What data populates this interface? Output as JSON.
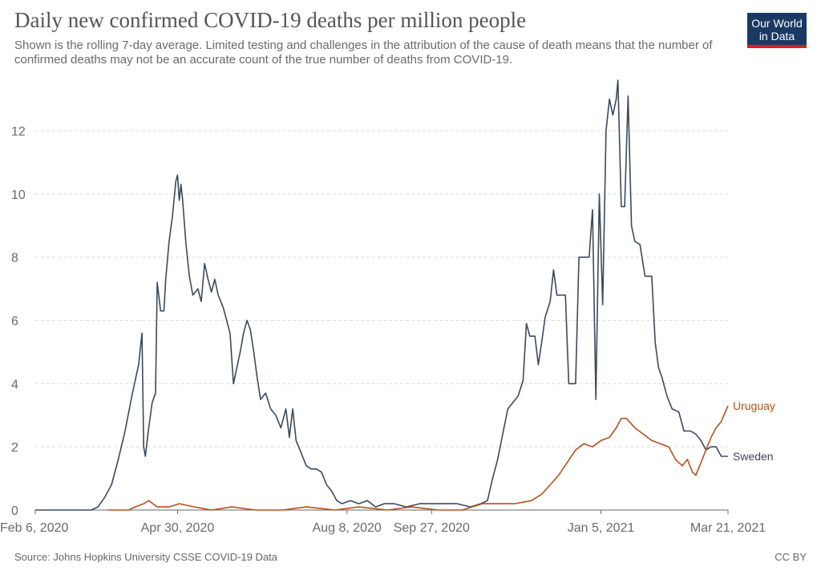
{
  "header": {
    "title": "Daily new confirmed COVID-19 deaths per million people",
    "subtitle": "Shown is the rolling 7-day average. Limited testing and challenges in the attribution of the cause of death means that the number of confirmed deaths may not be an accurate count of the true number of deaths from COVID-19.",
    "logo_line1": "Our World",
    "logo_line2": "in Data"
  },
  "footer": {
    "source": "Source: Johns Hopkins University CSSE COVID-19 Data",
    "license": "CC BY"
  },
  "colors": {
    "sweden": "#3b4a5b",
    "uruguay": "#b5501b",
    "logo_bg": "#1a3a63",
    "logo_accent": "#ce261e"
  },
  "chart_data": {
    "type": "line",
    "title": "Daily new confirmed COVID-19 deaths per million people",
    "xlabel": "",
    "ylabel": "",
    "ylim": [
      0,
      13.6
    ],
    "xlim": [
      "2020-02-06",
      "2021-03-21"
    ],
    "y_ticks": [
      0,
      2,
      4,
      6,
      8,
      10,
      12
    ],
    "x_ticks": [
      {
        "date": "2020-02-06",
        "label": "Feb 6, 2020"
      },
      {
        "date": "2020-04-30",
        "label": "Apr 30, 2020"
      },
      {
        "date": "2020-08-08",
        "label": "Aug 8, 2020"
      },
      {
        "date": "2020-09-27",
        "label": "Sep 27, 2020"
      },
      {
        "date": "2021-01-05",
        "label": "Jan 5, 2021"
      },
      {
        "date": "2021-03-21",
        "label": "Mar 21, 2021"
      }
    ],
    "grid": "horizontal dashed",
    "series": [
      {
        "name": "Sweden",
        "points": [
          [
            "2020-02-06",
            0
          ],
          [
            "2020-03-10",
            0
          ],
          [
            "2020-03-14",
            0.1
          ],
          [
            "2020-03-18",
            0.4
          ],
          [
            "2020-03-22",
            0.8
          ],
          [
            "2020-03-26",
            1.6
          ],
          [
            "2020-03-30",
            2.5
          ],
          [
            "2020-04-03",
            3.6
          ],
          [
            "2020-04-07",
            4.6
          ],
          [
            "2020-04-09",
            5.6
          ],
          [
            "2020-04-10",
            2.0
          ],
          [
            "2020-04-11",
            1.7
          ],
          [
            "2020-04-13",
            2.6
          ],
          [
            "2020-04-15",
            3.4
          ],
          [
            "2020-04-17",
            3.7
          ],
          [
            "2020-04-18",
            7.2
          ],
          [
            "2020-04-20",
            6.3
          ],
          [
            "2020-04-22",
            6.3
          ],
          [
            "2020-04-23",
            7.3
          ],
          [
            "2020-04-25",
            8.5
          ],
          [
            "2020-04-27",
            9.3
          ],
          [
            "2020-04-29",
            10.4
          ],
          [
            "2020-04-30",
            10.6
          ],
          [
            "2020-05-01",
            9.8
          ],
          [
            "2020-05-02",
            10.3
          ],
          [
            "2020-05-03",
            9.8
          ],
          [
            "2020-05-05",
            8.4
          ],
          [
            "2020-05-07",
            7.4
          ],
          [
            "2020-05-09",
            6.8
          ],
          [
            "2020-05-12",
            7.0
          ],
          [
            "2020-05-14",
            6.6
          ],
          [
            "2020-05-16",
            7.8
          ],
          [
            "2020-05-18",
            7.3
          ],
          [
            "2020-05-20",
            6.9
          ],
          [
            "2020-05-22",
            7.3
          ],
          [
            "2020-05-24",
            6.8
          ],
          [
            "2020-05-27",
            6.4
          ],
          [
            "2020-05-29",
            6.0
          ],
          [
            "2020-05-31",
            5.6
          ],
          [
            "2020-06-02",
            4.0
          ],
          [
            "2020-06-04",
            4.5
          ],
          [
            "2020-06-06",
            5.0
          ],
          [
            "2020-06-08",
            5.6
          ],
          [
            "2020-06-10",
            6.0
          ],
          [
            "2020-06-12",
            5.7
          ],
          [
            "2020-06-14",
            5.0
          ],
          [
            "2020-06-16",
            4.2
          ],
          [
            "2020-06-18",
            3.5
          ],
          [
            "2020-06-21",
            3.7
          ],
          [
            "2020-06-24",
            3.2
          ],
          [
            "2020-06-27",
            3.0
          ],
          [
            "2020-06-30",
            2.6
          ],
          [
            "2020-07-03",
            3.2
          ],
          [
            "2020-07-05",
            2.3
          ],
          [
            "2020-07-07",
            3.2
          ],
          [
            "2020-07-09",
            2.2
          ],
          [
            "2020-07-12",
            1.8
          ],
          [
            "2020-07-15",
            1.4
          ],
          [
            "2020-07-18",
            1.3
          ],
          [
            "2020-07-21",
            1.3
          ],
          [
            "2020-07-24",
            1.2
          ],
          [
            "2020-07-27",
            0.8
          ],
          [
            "2020-07-30",
            0.6
          ],
          [
            "2020-08-02",
            0.3
          ],
          [
            "2020-08-05",
            0.2
          ],
          [
            "2020-08-10",
            0.3
          ],
          [
            "2020-08-15",
            0.2
          ],
          [
            "2020-08-20",
            0.3
          ],
          [
            "2020-08-25",
            0.1
          ],
          [
            "2020-08-30",
            0.2
          ],
          [
            "2020-09-05",
            0.2
          ],
          [
            "2020-09-12",
            0.1
          ],
          [
            "2020-09-20",
            0.2
          ],
          [
            "2020-09-27",
            0.2
          ],
          [
            "2020-10-05",
            0.2
          ],
          [
            "2020-10-12",
            0.2
          ],
          [
            "2020-10-20",
            0.1
          ],
          [
            "2020-10-26",
            0.2
          ],
          [
            "2020-10-30",
            0.3
          ],
          [
            "2020-11-02",
            1.0
          ],
          [
            "2020-11-05",
            1.6
          ],
          [
            "2020-11-08",
            2.4
          ],
          [
            "2020-11-11",
            3.2
          ],
          [
            "2020-11-14",
            3.4
          ],
          [
            "2020-11-17",
            3.6
          ],
          [
            "2020-11-20",
            4.1
          ],
          [
            "2020-11-22",
            5.9
          ],
          [
            "2020-11-24",
            5.5
          ],
          [
            "2020-11-27",
            5.5
          ],
          [
            "2020-11-29",
            4.6
          ],
          [
            "2020-12-01",
            5.3
          ],
          [
            "2020-12-03",
            6.1
          ],
          [
            "2020-12-06",
            6.6
          ],
          [
            "2020-12-08",
            7.6
          ],
          [
            "2020-12-10",
            6.8
          ],
          [
            "2020-12-15",
            6.8
          ],
          [
            "2020-12-17",
            4.0
          ],
          [
            "2020-12-19",
            4.0
          ],
          [
            "2020-12-21",
            4.0
          ],
          [
            "2020-12-23",
            8.0
          ],
          [
            "2020-12-26",
            8.0
          ],
          [
            "2020-12-29",
            8.0
          ],
          [
            "2020-12-31",
            9.5
          ],
          [
            "2021-01-02",
            3.5
          ],
          [
            "2021-01-04",
            10.0
          ],
          [
            "2021-01-06",
            6.5
          ],
          [
            "2021-01-08",
            12.0
          ],
          [
            "2021-01-10",
            13.0
          ],
          [
            "2021-01-12",
            12.5
          ],
          [
            "2021-01-14",
            13.0
          ],
          [
            "2021-01-15",
            13.6
          ],
          [
            "2021-01-17",
            9.6
          ],
          [
            "2021-01-19",
            9.6
          ],
          [
            "2021-01-21",
            13.1
          ],
          [
            "2021-01-23",
            9.0
          ],
          [
            "2021-01-25",
            8.5
          ],
          [
            "2021-01-28",
            8.4
          ],
          [
            "2021-01-31",
            7.4
          ],
          [
            "2021-02-04",
            7.4
          ],
          [
            "2021-02-06",
            5.3
          ],
          [
            "2021-02-08",
            4.5
          ],
          [
            "2021-02-10",
            4.2
          ],
          [
            "2021-02-13",
            3.6
          ],
          [
            "2021-02-16",
            3.2
          ],
          [
            "2021-02-20",
            3.1
          ],
          [
            "2021-02-23",
            2.5
          ],
          [
            "2021-02-27",
            2.5
          ],
          [
            "2021-03-02",
            2.4
          ],
          [
            "2021-03-05",
            2.2
          ],
          [
            "2021-03-08",
            1.9
          ],
          [
            "2021-03-11",
            2.0
          ],
          [
            "2021-03-14",
            2.0
          ],
          [
            "2021-03-17",
            1.7
          ],
          [
            "2021-03-21",
            1.7
          ]
        ]
      },
      {
        "name": "Uruguay",
        "points": [
          [
            "2020-03-20",
            0
          ],
          [
            "2020-04-01",
            0
          ],
          [
            "2020-04-05",
            0.1
          ],
          [
            "2020-04-10",
            0.2
          ],
          [
            "2020-04-13",
            0.3
          ],
          [
            "2020-04-18",
            0.1
          ],
          [
            "2020-04-25",
            0.1
          ],
          [
            "2020-05-01",
            0.2
          ],
          [
            "2020-05-10",
            0.1
          ],
          [
            "2020-05-20",
            0.0
          ],
          [
            "2020-06-01",
            0.1
          ],
          [
            "2020-06-15",
            0.0
          ],
          [
            "2020-07-01",
            0.0
          ],
          [
            "2020-07-15",
            0.1
          ],
          [
            "2020-08-01",
            0.0
          ],
          [
            "2020-08-15",
            0.1
          ],
          [
            "2020-09-01",
            0.0
          ],
          [
            "2020-09-15",
            0.1
          ],
          [
            "2020-10-01",
            0.0
          ],
          [
            "2020-10-15",
            0.0
          ],
          [
            "2020-10-27",
            0.2
          ],
          [
            "2020-11-05",
            0.2
          ],
          [
            "2020-11-15",
            0.2
          ],
          [
            "2020-11-25",
            0.3
          ],
          [
            "2020-12-01",
            0.5
          ],
          [
            "2020-12-06",
            0.8
          ],
          [
            "2020-12-11",
            1.1
          ],
          [
            "2020-12-16",
            1.5
          ],
          [
            "2020-12-21",
            1.9
          ],
          [
            "2020-12-26",
            2.1
          ],
          [
            "2020-12-31",
            2.0
          ],
          [
            "2021-01-05",
            2.2
          ],
          [
            "2021-01-10",
            2.3
          ],
          [
            "2021-01-14",
            2.6
          ],
          [
            "2021-01-17",
            2.9
          ],
          [
            "2021-01-20",
            2.9
          ],
          [
            "2021-01-25",
            2.6
          ],
          [
            "2021-01-30",
            2.4
          ],
          [
            "2021-02-04",
            2.2
          ],
          [
            "2021-02-09",
            2.1
          ],
          [
            "2021-02-14",
            2.0
          ],
          [
            "2021-02-18",
            1.6
          ],
          [
            "2021-02-22",
            1.4
          ],
          [
            "2021-02-25",
            1.6
          ],
          [
            "2021-02-28",
            1.2
          ],
          [
            "2021-03-02",
            1.1
          ],
          [
            "2021-03-05",
            1.5
          ],
          [
            "2021-03-08",
            1.9
          ],
          [
            "2021-03-11",
            2.3
          ],
          [
            "2021-03-14",
            2.6
          ],
          [
            "2021-03-17",
            2.8
          ],
          [
            "2021-03-21",
            3.3
          ]
        ]
      }
    ],
    "end_labels": [
      "Uruguay",
      "Sweden"
    ]
  }
}
